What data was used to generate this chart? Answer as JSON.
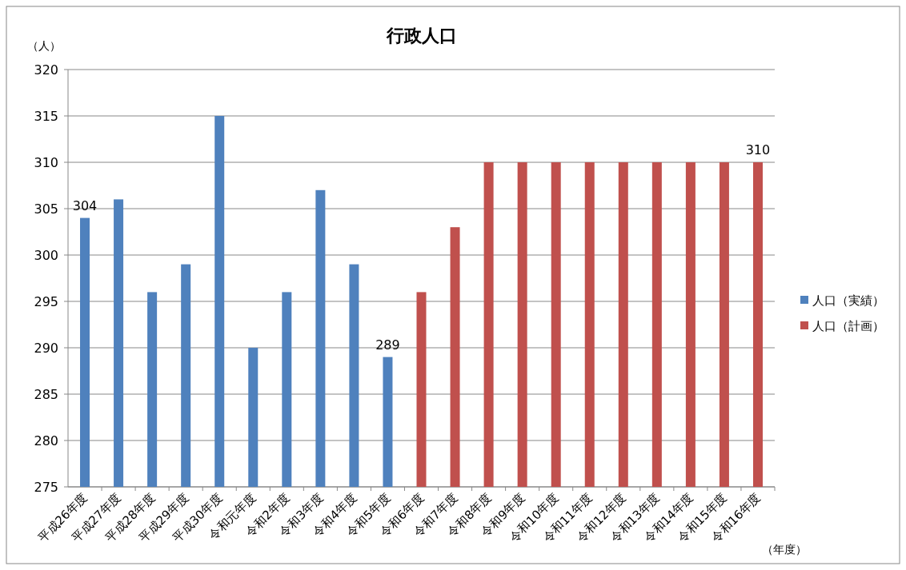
{
  "chart_data": {
    "type": "bar",
    "title": "行政人口",
    "ylabel": "（人）",
    "xlabel": "（年度）",
    "categories": [
      "平成26年度",
      "平成27年度",
      "平成28年度",
      "平成29年度",
      "平成30年度",
      "令和元年度",
      "令和2年度",
      "令和3年度",
      "令和4年度",
      "令和5年度",
      "令和6年度",
      "令和7年度",
      "令和8年度",
      "令和9年度",
      "令和10年度",
      "令和11年度",
      "令和12年度",
      "令和13年度",
      "令和14年度",
      "令和15年度",
      "令和16年度"
    ],
    "series": [
      {
        "name": "人口（実績）",
        "color": "#4f81bd",
        "values": [
          304,
          306,
          296,
          299,
          315,
          290,
          296,
          307,
          299,
          289,
          null,
          null,
          null,
          null,
          null,
          null,
          null,
          null,
          null,
          null,
          null
        ],
        "value_labels": [
          "304",
          null,
          null,
          null,
          null,
          null,
          null,
          null,
          null,
          "289",
          null,
          null,
          null,
          null,
          null,
          null,
          null,
          null,
          null,
          null,
          null
        ]
      },
      {
        "name": "人口（計画）",
        "color": "#c0504d",
        "values": [
          null,
          null,
          null,
          null,
          null,
          null,
          null,
          null,
          null,
          null,
          296,
          303,
          310,
          310,
          310,
          310,
          310,
          310,
          310,
          310,
          310
        ],
        "value_labels": [
          null,
          null,
          null,
          null,
          null,
          null,
          null,
          null,
          null,
          null,
          null,
          null,
          null,
          null,
          null,
          null,
          null,
          null,
          null,
          null,
          "310"
        ]
      }
    ],
    "ylim": [
      275,
      320
    ],
    "yticks": [
      275,
      280,
      285,
      290,
      295,
      300,
      305,
      310,
      315,
      320
    ],
    "grid": "y",
    "legend": "right"
  }
}
